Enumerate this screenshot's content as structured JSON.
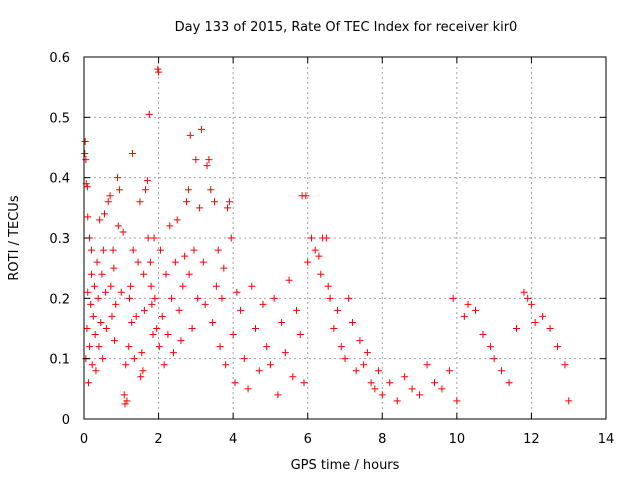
{
  "chart_data": {
    "type": "scatter",
    "title": "Day 133 of 2015, Rate Of TEC Index for receiver kir0",
    "xlabel": "GPS time / hours",
    "ylabel": "ROTI / TECUs",
    "xlim": [
      0,
      14
    ],
    "ylim": [
      0,
      0.6
    ],
    "xticks": [
      0,
      2,
      4,
      6,
      8,
      10,
      12,
      14
    ],
    "yticks": [
      0,
      0.1,
      0.2,
      0.3,
      0.4,
      0.5,
      0.6
    ],
    "xtick_labels": [
      "0",
      "2",
      "4",
      "6",
      "8",
      "10",
      "12",
      "14"
    ],
    "ytick_labels": [
      "0",
      "0.1",
      "0.2",
      "0.3",
      "0.4",
      "0.5",
      "0.6"
    ],
    "grid": true,
    "marker": "+",
    "marker_color": "#ff0000",
    "series": [
      {
        "name": "ROTI",
        "points": [
          [
            0.02,
            0.44
          ],
          [
            0.03,
            0.46
          ],
          [
            0.05,
            0.43
          ],
          [
            0.06,
            0.39
          ],
          [
            0.09,
            0.385
          ],
          [
            0.1,
            0.335
          ],
          [
            0.15,
            0.3
          ],
          [
            0.2,
            0.28
          ],
          [
            0.05,
            0.1
          ],
          [
            0.08,
            0.15
          ],
          [
            0.1,
            0.21
          ],
          [
            0.12,
            0.06
          ],
          [
            0.15,
            0.12
          ],
          [
            0.18,
            0.19
          ],
          [
            0.2,
            0.24
          ],
          [
            0.22,
            0.09
          ],
          [
            0.25,
            0.17
          ],
          [
            0.28,
            0.22
          ],
          [
            0.3,
            0.14
          ],
          [
            0.32,
            0.08
          ],
          [
            0.35,
            0.26
          ],
          [
            0.38,
            0.2
          ],
          [
            0.4,
            0.12
          ],
          [
            0.42,
            0.33
          ],
          [
            0.45,
            0.16
          ],
          [
            0.48,
            0.24
          ],
          [
            0.5,
            0.1
          ],
          [
            0.52,
            0.28
          ],
          [
            0.55,
            0.34
          ],
          [
            0.58,
            0.21
          ],
          [
            0.6,
            0.15
          ],
          [
            0.65,
            0.36
          ],
          [
            0.7,
            0.37
          ],
          [
            0.72,
            0.22
          ],
          [
            0.75,
            0.17
          ],
          [
            0.78,
            0.28
          ],
          [
            0.8,
            0.25
          ],
          [
            0.82,
            0.13
          ],
          [
            0.85,
            0.19
          ],
          [
            0.9,
            0.4
          ],
          [
            0.92,
            0.32
          ],
          [
            0.95,
            0.38
          ],
          [
            1.0,
            0.21
          ],
          [
            1.05,
            0.31
          ],
          [
            1.08,
            0.04
          ],
          [
            1.1,
            0.025
          ],
          [
            1.12,
            0.09
          ],
          [
            1.15,
            0.03
          ],
          [
            1.2,
            0.12
          ],
          [
            1.22,
            0.2
          ],
          [
            1.25,
            0.22
          ],
          [
            1.28,
            0.16
          ],
          [
            1.3,
            0.44
          ],
          [
            1.32,
            0.28
          ],
          [
            1.35,
            0.1
          ],
          [
            1.4,
            0.17
          ],
          [
            1.45,
            0.26
          ],
          [
            1.5,
            0.36
          ],
          [
            1.52,
            0.07
          ],
          [
            1.55,
            0.11
          ],
          [
            1.58,
            0.08
          ],
          [
            1.6,
            0.24
          ],
          [
            1.62,
            0.18
          ],
          [
            1.65,
            0.38
          ],
          [
            1.7,
            0.395
          ],
          [
            1.72,
            0.3
          ],
          [
            1.75,
            0.505
          ],
          [
            1.78,
            0.26
          ],
          [
            1.8,
            0.22
          ],
          [
            1.82,
            0.19
          ],
          [
            1.85,
            0.14
          ],
          [
            1.88,
            0.3
          ],
          [
            1.9,
            0.2
          ],
          [
            1.95,
            0.15
          ],
          [
            1.98,
            0.58
          ],
          [
            2.0,
            0.575
          ],
          [
            2.02,
            0.12
          ],
          [
            2.05,
            0.28
          ],
          [
            2.1,
            0.17
          ],
          [
            2.15,
            0.09
          ],
          [
            2.2,
            0.24
          ],
          [
            2.25,
            0.14
          ],
          [
            2.3,
            0.32
          ],
          [
            2.35,
            0.2
          ],
          [
            2.4,
            0.11
          ],
          [
            2.45,
            0.26
          ],
          [
            2.5,
            0.33
          ],
          [
            2.55,
            0.18
          ],
          [
            2.6,
            0.13
          ],
          [
            2.65,
            0.22
          ],
          [
            2.7,
            0.27
          ],
          [
            2.75,
            0.36
          ],
          [
            2.8,
            0.38
          ],
          [
            2.82,
            0.24
          ],
          [
            2.85,
            0.47
          ],
          [
            2.9,
            0.15
          ],
          [
            2.95,
            0.28
          ],
          [
            3.0,
            0.43
          ],
          [
            3.05,
            0.2
          ],
          [
            3.1,
            0.35
          ],
          [
            3.15,
            0.48
          ],
          [
            3.2,
            0.26
          ],
          [
            3.25,
            0.19
          ],
          [
            3.3,
            0.42
          ],
          [
            3.35,
            0.43
          ],
          [
            3.4,
            0.38
          ],
          [
            3.45,
            0.16
          ],
          [
            3.5,
            0.36
          ],
          [
            3.55,
            0.22
          ],
          [
            3.6,
            0.28
          ],
          [
            3.65,
            0.12
          ],
          [
            3.7,
            0.2
          ],
          [
            3.75,
            0.25
          ],
          [
            3.8,
            0.09
          ],
          [
            3.85,
            0.35
          ],
          [
            3.9,
            0.36
          ],
          [
            3.95,
            0.3
          ],
          [
            4.0,
            0.14
          ],
          [
            4.05,
            0.06
          ],
          [
            4.1,
            0.21
          ],
          [
            4.2,
            0.18
          ],
          [
            4.3,
            0.1
          ],
          [
            4.4,
            0.05
          ],
          [
            4.5,
            0.22
          ],
          [
            4.6,
            0.15
          ],
          [
            4.7,
            0.08
          ],
          [
            4.8,
            0.19
          ],
          [
            4.9,
            0.12
          ],
          [
            5.0,
            0.09
          ],
          [
            5.1,
            0.2
          ],
          [
            5.2,
            0.04
          ],
          [
            5.3,
            0.16
          ],
          [
            5.4,
            0.11
          ],
          [
            5.5,
            0.23
          ],
          [
            5.6,
            0.07
          ],
          [
            5.7,
            0.18
          ],
          [
            5.8,
            0.14
          ],
          [
            5.85,
            0.37
          ],
          [
            5.9,
            0.06
          ],
          [
            5.95,
            0.37
          ],
          [
            6.0,
            0.26
          ],
          [
            6.1,
            0.3
          ],
          [
            6.2,
            0.28
          ],
          [
            6.3,
            0.27
          ],
          [
            6.35,
            0.24
          ],
          [
            6.4,
            0.3
          ],
          [
            6.5,
            0.3
          ],
          [
            6.55,
            0.22
          ],
          [
            6.6,
            0.2
          ],
          [
            6.7,
            0.15
          ],
          [
            6.8,
            0.18
          ],
          [
            6.9,
            0.12
          ],
          [
            7.0,
            0.1
          ],
          [
            7.1,
            0.2
          ],
          [
            7.2,
            0.16
          ],
          [
            7.3,
            0.08
          ],
          [
            7.4,
            0.13
          ],
          [
            7.5,
            0.09
          ],
          [
            7.6,
            0.11
          ],
          [
            7.7,
            0.06
          ],
          [
            7.8,
            0.05
          ],
          [
            7.9,
            0.08
          ],
          [
            8.0,
            0.04
          ],
          [
            8.2,
            0.06
          ],
          [
            8.4,
            0.03
          ],
          [
            8.6,
            0.07
          ],
          [
            8.8,
            0.05
          ],
          [
            9.0,
            0.04
          ],
          [
            9.2,
            0.09
          ],
          [
            9.4,
            0.06
          ],
          [
            9.6,
            0.05
          ],
          [
            9.8,
            0.08
          ],
          [
            9.9,
            0.2
          ],
          [
            10.0,
            0.03
          ],
          [
            10.2,
            0.17
          ],
          [
            10.3,
            0.19
          ],
          [
            10.5,
            0.18
          ],
          [
            10.7,
            0.14
          ],
          [
            10.9,
            0.12
          ],
          [
            11.0,
            0.1
          ],
          [
            11.2,
            0.08
          ],
          [
            11.4,
            0.06
          ],
          [
            11.6,
            0.15
          ],
          [
            11.8,
            0.21
          ],
          [
            11.9,
            0.2
          ],
          [
            12.0,
            0.19
          ],
          [
            12.1,
            0.16
          ],
          [
            12.3,
            0.17
          ],
          [
            12.5,
            0.15
          ],
          [
            12.7,
            0.12
          ],
          [
            12.9,
            0.09
          ],
          [
            13.0,
            0.03
          ]
        ]
      }
    ]
  }
}
